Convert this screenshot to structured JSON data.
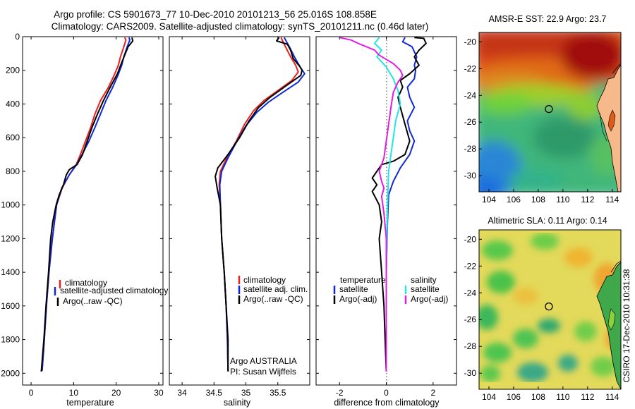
{
  "figure": {
    "title_line1": "Argo profile: CS 5901673_77 10-Dec-2010 20101213_56 25.016S 108.858E",
    "title_line2": "Climatology: CARS2009. Satellite-adjusted climatology: synTS_20101211.nc (0.46d later)",
    "side_caption": "CSIRO 17-Dec-2010 10:31:38"
  },
  "colors": {
    "climatology": "#e8211d",
    "satellite": "#1029d6",
    "argo": "#000000",
    "sal_satellite": "#22e6e6",
    "sal_argo": "#e21de0"
  },
  "chart_data": [
    {
      "type": "line",
      "panel": "temperature",
      "xlabel": "temperature",
      "ylabel": "",
      "xlim": [
        -2,
        31
      ],
      "ylim": [
        2070,
        0
      ],
      "y_reversed": true,
      "xticks": [
        "0",
        "10",
        "20",
        "30"
      ],
      "xtick_values": [
        0,
        10,
        20,
        30
      ],
      "yticks": [
        "0",
        "200",
        "400",
        "600",
        "800",
        "1000",
        "1200",
        "1400",
        "1600",
        "1800",
        "2000"
      ],
      "ytick_values": [
        0,
        200,
        400,
        600,
        800,
        1000,
        1200,
        1400,
        1600,
        1800,
        2000
      ],
      "legend": [
        "climatology",
        "satellite-adjusted climatology",
        "Argo(..raw -QC)"
      ],
      "series": [
        {
          "name": "climatology",
          "color": "#e8211d",
          "points": [
            [
              22.0,
              5
            ],
            [
              22.3,
              20
            ],
            [
              21.8,
              60
            ],
            [
              21.0,
              120
            ],
            [
              20.5,
              170
            ],
            [
              19.5,
              230
            ],
            [
              18.2,
              300
            ],
            [
              16.3,
              380
            ],
            [
              15.0,
              460
            ],
            [
              14.0,
              540
            ],
            [
              12.8,
              620
            ],
            [
              11.6,
              700
            ],
            [
              10.6,
              760
            ],
            [
              9.0,
              820
            ],
            [
              7.3,
              900
            ],
            [
              6.0,
              1000
            ],
            [
              5.0,
              1200
            ],
            [
              4.2,
              1400
            ],
            [
              3.6,
              1600
            ],
            [
              3.1,
              1800
            ],
            [
              2.6,
              1985
            ]
          ]
        },
        {
          "name": "satellite-adjusted climatology",
          "color": "#1029d6",
          "points": [
            [
              23.0,
              5
            ],
            [
              23.2,
              20
            ],
            [
              22.6,
              60
            ],
            [
              21.8,
              120
            ],
            [
              21.3,
              170
            ],
            [
              20.4,
              230
            ],
            [
              19.2,
              300
            ],
            [
              17.6,
              380
            ],
            [
              16.3,
              460
            ],
            [
              15.0,
              540
            ],
            [
              13.6,
              620
            ],
            [
              12.0,
              700
            ],
            [
              10.7,
              760
            ],
            [
              9.0,
              820
            ],
            [
              7.2,
              900
            ],
            [
              6.0,
              1000
            ],
            [
              5.0,
              1200
            ],
            [
              4.2,
              1400
            ],
            [
              3.6,
              1600
            ],
            [
              3.1,
              1800
            ],
            [
              2.6,
              1985
            ]
          ]
        },
        {
          "name": "Argo(..raw -QC)",
          "color": "#000000",
          "points": [
            [
              23.7,
              5
            ],
            [
              23.9,
              25
            ],
            [
              22.8,
              60
            ],
            [
              22.0,
              110
            ],
            [
              21.2,
              160
            ],
            [
              20.3,
              220
            ],
            [
              18.6,
              300
            ],
            [
              17.0,
              380
            ],
            [
              15.6,
              460
            ],
            [
              14.3,
              540
            ],
            [
              13.2,
              620
            ],
            [
              12.1,
              700
            ],
            [
              10.8,
              760
            ],
            [
              9.0,
              790
            ],
            [
              8.3,
              820
            ],
            [
              7.6,
              880
            ],
            [
              6.6,
              940
            ],
            [
              5.9,
              1000
            ],
            [
              5.1,
              1100
            ],
            [
              4.6,
              1200
            ],
            [
              4.1,
              1400
            ],
            [
              3.5,
              1600
            ],
            [
              3.0,
              1800
            ],
            [
              2.4,
              1990
            ]
          ]
        }
      ]
    },
    {
      "type": "line",
      "panel": "salinity",
      "xlabel": "salinity",
      "ylabel": "",
      "xlim": [
        33.8,
        36.0
      ],
      "ylim": [
        2070,
        0
      ],
      "y_reversed": true,
      "xticks": [
        "34",
        "34.5",
        "35",
        "35.5"
      ],
      "xtick_values": [
        34,
        34.5,
        35,
        35.5
      ],
      "legend": [
        "climatology",
        "satellite adj. clim.",
        "Argo(..raw -QC)"
      ],
      "annotation_line1": "Argo AUSTRALIA",
      "annotation_line2": "PI: Susan Wijffels",
      "series": [
        {
          "name": "climatology",
          "color": "#e8211d",
          "points": [
            [
              35.55,
              5
            ],
            [
              35.62,
              60
            ],
            [
              35.7,
              120
            ],
            [
              35.78,
              170
            ],
            [
              35.82,
              210
            ],
            [
              35.72,
              260
            ],
            [
              35.5,
              320
            ],
            [
              35.28,
              380
            ],
            [
              35.12,
              440
            ],
            [
              34.98,
              520
            ],
            [
              34.85,
              620
            ],
            [
              34.7,
              720
            ],
            [
              34.6,
              800
            ],
            [
              34.58,
              880
            ],
            [
              34.6,
              1000
            ],
            [
              34.62,
              1200
            ],
            [
              34.66,
              1400
            ],
            [
              34.69,
              1600
            ],
            [
              34.71,
              1800
            ],
            [
              34.72,
              1985
            ]
          ]
        },
        {
          "name": "satellite adj. clim.",
          "color": "#1029d6",
          "points": [
            [
              35.6,
              5
            ],
            [
              35.68,
              60
            ],
            [
              35.76,
              120
            ],
            [
              35.85,
              180
            ],
            [
              35.92,
              220
            ],
            [
              35.82,
              270
            ],
            [
              35.58,
              330
            ],
            [
              35.35,
              390
            ],
            [
              35.17,
              450
            ],
            [
              35.0,
              530
            ],
            [
              34.86,
              620
            ],
            [
              34.72,
              720
            ],
            [
              34.62,
              800
            ],
            [
              34.59,
              880
            ],
            [
              34.6,
              1000
            ],
            [
              34.62,
              1200
            ],
            [
              34.66,
              1400
            ],
            [
              34.69,
              1600
            ],
            [
              34.71,
              1800
            ],
            [
              34.72,
              1985
            ]
          ]
        },
        {
          "name": "Argo(..raw -QC)",
          "color": "#000000",
          "points": [
            [
              35.52,
              5
            ],
            [
              35.48,
              25
            ],
            [
              35.65,
              45
            ],
            [
              35.7,
              80
            ],
            [
              35.74,
              130
            ],
            [
              35.85,
              180
            ],
            [
              35.88,
              200
            ],
            [
              35.86,
              230
            ],
            [
              35.6,
              300
            ],
            [
              35.38,
              360
            ],
            [
              35.2,
              420
            ],
            [
              35.05,
              500
            ],
            [
              34.9,
              600
            ],
            [
              34.72,
              700
            ],
            [
              34.56,
              780
            ],
            [
              34.52,
              830
            ],
            [
              34.55,
              900
            ],
            [
              34.6,
              1000
            ],
            [
              34.62,
              1200
            ],
            [
              34.66,
              1400
            ],
            [
              34.69,
              1600
            ],
            [
              34.72,
              1800
            ],
            [
              34.72,
              1990
            ]
          ]
        }
      ]
    },
    {
      "type": "line",
      "panel": "difference",
      "xlabel": "difference from climatology",
      "ylabel": "",
      "xlim": [
        -3,
        3
      ],
      "ylim": [
        2070,
        0
      ],
      "y_reversed": true,
      "xticks": [
        "-2",
        "0",
        "2"
      ],
      "xtick_values": [
        -2,
        0,
        2
      ],
      "legend_left_title": "temperature",
      "legend_left": [
        "satellite",
        "Argo(-adj)"
      ],
      "legend_right_title": "salinity",
      "legend_right": [
        "satellite",
        "Argo(-adj)"
      ],
      "series": [
        {
          "name": "temperature satellite",
          "color": "#1029d6",
          "points": [
            [
              0.8,
              5
            ],
            [
              0.7,
              30
            ],
            [
              1.1,
              60
            ],
            [
              1.3,
              120
            ],
            [
              1.2,
              170
            ],
            [
              1.25,
              200
            ],
            [
              1.2,
              250
            ],
            [
              0.9,
              300
            ],
            [
              1.0,
              360
            ],
            [
              1.2,
              420
            ],
            [
              0.9,
              500
            ],
            [
              1.0,
              560
            ],
            [
              1.2,
              620
            ],
            [
              1.0,
              700
            ],
            [
              0.6,
              780
            ],
            [
              0.3,
              860
            ],
            [
              0.1,
              940
            ],
            [
              0.05,
              1100
            ],
            [
              0.0,
              1400
            ],
            [
              0.0,
              1800
            ],
            [
              0.0,
              1985
            ]
          ]
        },
        {
          "name": "temperature Argo(-adj)",
          "color": "#000000",
          "points": [
            [
              1.2,
              5
            ],
            [
              1.6,
              10
            ],
            [
              1.7,
              40
            ],
            [
              1.4,
              80
            ],
            [
              1.2,
              120
            ],
            [
              1.4,
              170
            ],
            [
              1.0,
              220
            ],
            [
              0.6,
              260
            ],
            [
              0.7,
              300
            ],
            [
              0.5,
              360
            ],
            [
              0.6,
              420
            ],
            [
              0.8,
              520
            ],
            [
              1.0,
              620
            ],
            [
              0.8,
              700
            ],
            [
              0.3,
              740
            ],
            [
              -0.2,
              760
            ],
            [
              -0.4,
              800
            ],
            [
              -0.6,
              840
            ],
            [
              -0.4,
              880
            ],
            [
              -0.6,
              920
            ],
            [
              -0.3,
              1000
            ],
            [
              -0.2,
              1100
            ],
            [
              -0.3,
              1200
            ],
            [
              -0.2,
              1400
            ],
            [
              -0.1,
              1600
            ],
            [
              -0.05,
              1800
            ],
            [
              0.0,
              1990
            ]
          ]
        },
        {
          "name": "salinity satellite",
          "color": "#22e6e6",
          "points": [
            [
              -0.3,
              5
            ],
            [
              -0.5,
              40
            ],
            [
              -0.2,
              80
            ],
            [
              -0.4,
              120
            ],
            [
              0.0,
              180
            ],
            [
              0.3,
              250
            ],
            [
              0.5,
              320
            ],
            [
              0.6,
              400
            ],
            [
              0.4,
              500
            ],
            [
              0.3,
              600
            ],
            [
              0.2,
              700
            ],
            [
              0.1,
              800
            ],
            [
              0.05,
              1000
            ],
            [
              0.0,
              1400
            ],
            [
              0.0,
              1800
            ],
            [
              0.0,
              1990
            ]
          ]
        },
        {
          "name": "salinity Argo(-adj)",
          "color": "#e21de0",
          "points": [
            [
              -2.0,
              5
            ],
            [
              -1.5,
              20
            ],
            [
              -1.2,
              40
            ],
            [
              -0.5,
              80
            ],
            [
              -0.3,
              110
            ],
            [
              0.3,
              160
            ],
            [
              0.6,
              200
            ],
            [
              0.7,
              230
            ],
            [
              0.5,
              270
            ],
            [
              0.3,
              330
            ],
            [
              0.2,
              420
            ],
            [
              0.1,
              520
            ],
            [
              0.0,
              620
            ],
            [
              -0.1,
              720
            ],
            [
              -0.3,
              800
            ],
            [
              -0.2,
              860
            ],
            [
              -0.1,
              900
            ],
            [
              -0.2,
              950
            ],
            [
              -0.1,
              1050
            ],
            [
              0.0,
              1200
            ],
            [
              0.0,
              1600
            ],
            [
              0.0,
              1990
            ]
          ]
        }
      ]
    }
  ],
  "maps": [
    {
      "title": "AMSR-E SST: 22.9  Argo: 23.7",
      "xticks": [
        "104",
        "106",
        "108",
        "110",
        "112",
        "114"
      ],
      "yticks": [
        "-20",
        "-22",
        "-24",
        "-26",
        "-28",
        "-30"
      ],
      "xlim": [
        103.2,
        114.7
      ],
      "ylim": [
        -31.2,
        -19.3
      ],
      "marker": [
        108.86,
        -25.02
      ]
    },
    {
      "title": "Altimetric SLA: 0.11  Argo: 0.14",
      "xticks": [
        "104",
        "106",
        "108",
        "110",
        "112",
        "114"
      ],
      "yticks": [
        "-20",
        "-22",
        "-24",
        "-26",
        "-28",
        "-30"
      ],
      "xlim": [
        103.2,
        114.7
      ],
      "ylim": [
        -31.2,
        -19.3
      ],
      "marker": [
        108.86,
        -25.02
      ]
    }
  ]
}
